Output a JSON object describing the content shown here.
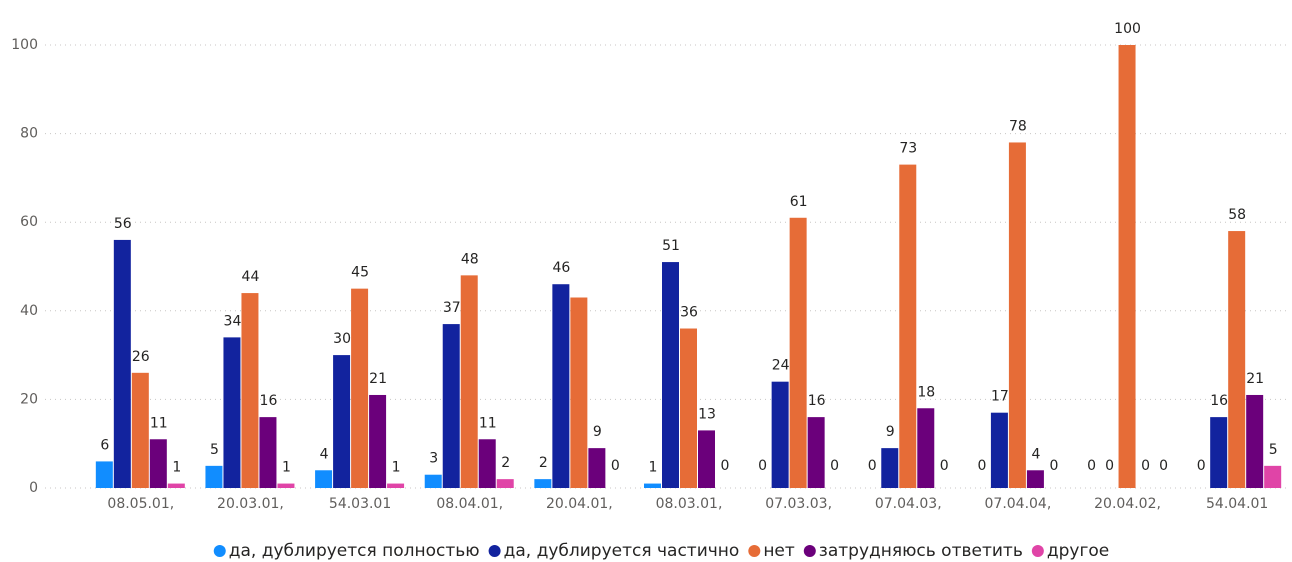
{
  "chart_data": {
    "type": "bar",
    "categories": [
      "08.05.01,",
      "20.03.01,",
      "54.03.01",
      "08.04.01,",
      "20.04.01,",
      "08.03.01,",
      "07.03.03,",
      "07.04.03,",
      "07.04.04,",
      "20.04.02,",
      "54.04.01"
    ],
    "series": [
      {
        "name": "да, дублируется полностью",
        "color": "#118DFF",
        "values": [
          6,
          5,
          4,
          3,
          2,
          1,
          0,
          0,
          0,
          0,
          0
        ]
      },
      {
        "name": "да, дублируется частично",
        "color": "#12239E",
        "values": [
          56,
          34,
          30,
          37,
          46,
          51,
          24,
          9,
          17,
          0,
          16
        ]
      },
      {
        "name": "нет",
        "color": "#E66C37",
        "values": [
          26,
          44,
          45,
          48,
          43,
          36,
          61,
          73,
          78,
          100,
          58
        ],
        "value_labels": [
          "26",
          "44",
          "45",
          "48",
          null,
          "36",
          "61",
          "73",
          "78",
          "100",
          "58"
        ]
      },
      {
        "name": "затрудняюсь ответить",
        "color": "#6B007B",
        "values": [
          11,
          16,
          21,
          11,
          9,
          13,
          16,
          18,
          4,
          0,
          21
        ]
      },
      {
        "name": "другое",
        "color": "#E044A7",
        "values": [
          1,
          1,
          1,
          2,
          0,
          0,
          0,
          0,
          0,
          0,
          5
        ]
      }
    ],
    "ylim": [
      0,
      100
    ],
    "yticks": [
      0,
      20,
      40,
      60,
      80,
      100
    ],
    "grid": true,
    "legend": "bottom"
  }
}
